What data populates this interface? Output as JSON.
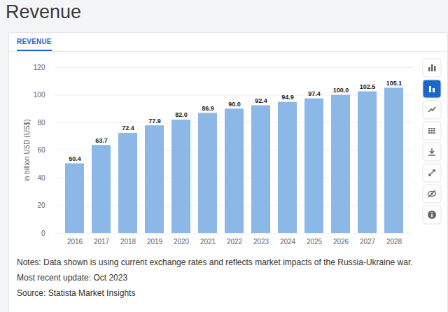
{
  "chart_data": {
    "type": "bar",
    "title": "Revenue",
    "subtitle": "REVENUE",
    "categories": [
      "2016",
      "2017",
      "2018",
      "2019",
      "2020",
      "2021",
      "2022",
      "2023",
      "2024",
      "2025",
      "2026",
      "2027",
      "2028"
    ],
    "values": [
      50.4,
      63.7,
      72.4,
      77.9,
      82.0,
      86.9,
      90.0,
      92.4,
      94.9,
      97.4,
      100.0,
      102.5,
      105.1
    ],
    "value_labels": [
      "50.4",
      "63.7",
      "72.4",
      "77.9",
      "82.0",
      "86.9",
      "90.0",
      "92.4",
      "94.9",
      "97.4",
      "100.0",
      "102.5",
      "105.1"
    ],
    "color": "#8bb8e6",
    "ylabel": "in billion USD (US$)",
    "ylim": [
      0,
      120
    ],
    "yticks": [
      0,
      20,
      40,
      60,
      80,
      100,
      120
    ],
    "grid": true,
    "data_labels": true,
    "notes": [
      "Notes: Data shown is using current exchange rates and reflects market impacts of the Russia-Ukraine war.",
      "Most recent update: Oct 2023",
      "Source: Statista Market Insights"
    ]
  }
}
